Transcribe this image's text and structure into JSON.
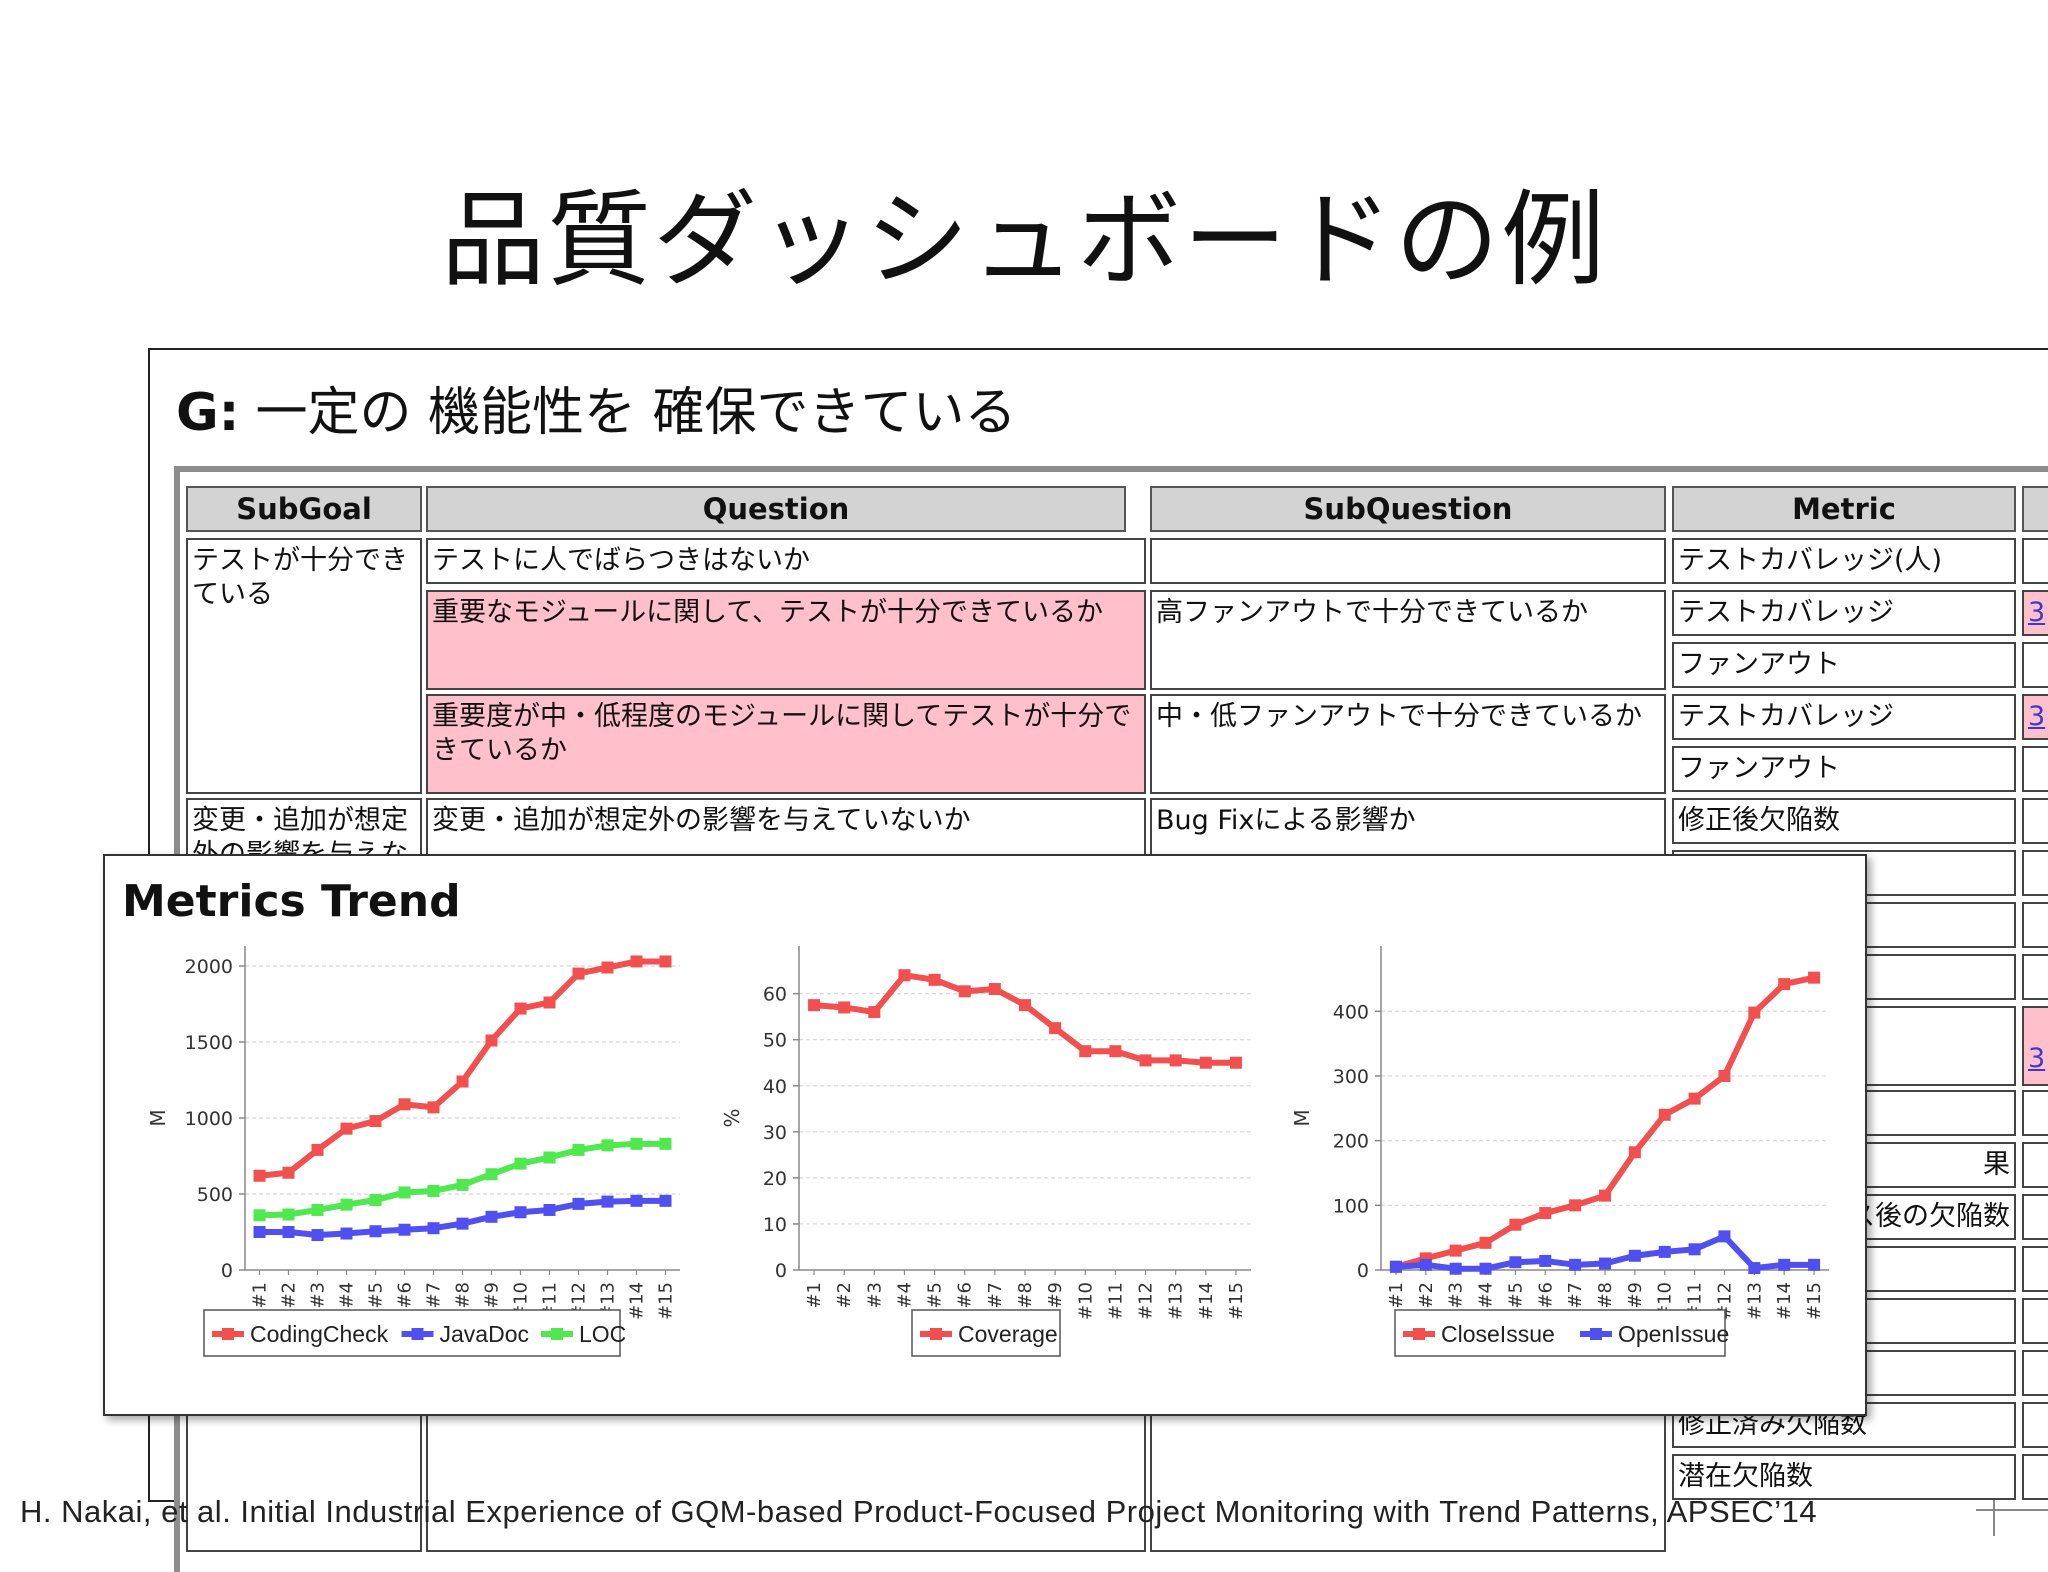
{
  "slide": {
    "title": "品質ダッシュボードの例",
    "citation": "H. Nakai, et al. Initial Industrial Experience of GQM-based Product-Focused Project Monitoring with Trend Patterns, APSEC’14"
  },
  "goal": {
    "prefix": "G:",
    "text": "一定の 機能性を 確保できている"
  },
  "table": {
    "headers": [
      "SubGoal",
      "Question",
      "SubQuestion",
      "Metric"
    ],
    "subgoals": [
      "テストが十分できている",
      "変更・追加が想定外の影響を与えないか"
    ],
    "questions": [
      "テストに人でばらつきはないか",
      "重要なモジュールに関して、テストが十分できているか",
      "重要度が中・低程度のモジュールに関してテストが十分できているか",
      "変更・追加が想定外の影響を与えていないか"
    ],
    "subquestions": [
      "",
      "高ファンアウトで十分できているか",
      "中・低ファンアウトで十分できているか",
      "Bug Fixによる影響か"
    ],
    "metrics": [
      "テストカバレッジ(人)",
      "テストカバレッジ",
      "ファンアウト",
      "テストカバレッジ",
      "ファンアウト",
      "修正後欠陥数",
      "修正済み欠陥数",
      "潜在欠陥数"
    ],
    "partial_metrics": [
      "果",
      "ス後の欠陥数"
    ],
    "link_values": [
      "3",
      "3",
      "3"
    ]
  },
  "metrics_trend": {
    "title": "Metrics Trend"
  },
  "chart_data": [
    {
      "type": "line",
      "x": [
        "#1",
        "#2",
        "#3",
        "#4",
        "#5",
        "#6",
        "#7",
        "#8",
        "#9",
        "#10",
        "#11",
        "#12",
        "#13",
        "#14",
        "#15"
      ],
      "ylabel": "M",
      "ylim": [
        0,
        2000
      ],
      "yticks": [
        0,
        500,
        1000,
        1500,
        2000
      ],
      "grid": true,
      "legend": "bottom",
      "series": [
        {
          "name": "CodingCheck",
          "color": "#f24f4f",
          "values": [
            620,
            640,
            790,
            930,
            980,
            1090,
            1070,
            1240,
            1510,
            1720,
            1760,
            1950,
            1990,
            2030,
            2030
          ]
        },
        {
          "name": "JavaDoc",
          "color": "#5050f0",
          "values": [
            250,
            250,
            230,
            240,
            255,
            265,
            275,
            305,
            350,
            380,
            395,
            435,
            450,
            455,
            455
          ]
        },
        {
          "name": "LOC",
          "color": "#4fe84f",
          "values": [
            360,
            365,
            395,
            430,
            460,
            510,
            520,
            560,
            630,
            700,
            740,
            790,
            820,
            830,
            830
          ]
        }
      ]
    },
    {
      "type": "line",
      "x": [
        "#1",
        "#2",
        "#3",
        "#4",
        "#5",
        "#6",
        "#7",
        "#8",
        "#9",
        "#10",
        "#11",
        "#12",
        "#13",
        "#14",
        "#15"
      ],
      "ylabel": "%",
      "ylim": [
        0,
        66
      ],
      "yticks": [
        0,
        10,
        20,
        30,
        40,
        50,
        60
      ],
      "grid": true,
      "legend": "bottom",
      "series": [
        {
          "name": "Coverage",
          "color": "#f24f4f",
          "values": [
            57.5,
            57,
            56,
            64,
            63,
            60.5,
            61,
            57.5,
            52.5,
            47.5,
            47.5,
            45.5,
            45.5,
            45,
            45
          ]
        }
      ]
    },
    {
      "type": "line",
      "x": [
        "#1",
        "#2",
        "#3",
        "#4",
        "#5",
        "#6",
        "#7",
        "#8",
        "#9",
        "#10",
        "#11",
        "#12",
        "#13",
        "#14",
        "#15"
      ],
      "ylabel": "M",
      "ylim": [
        0,
        470
      ],
      "yticks": [
        0,
        100,
        200,
        300,
        400
      ],
      "grid": true,
      "legend": "bottom",
      "series": [
        {
          "name": "CloseIssue",
          "color": "#f24f4f",
          "values": [
            5,
            18,
            30,
            42,
            70,
            88,
            100,
            115,
            182,
            240,
            265,
            300,
            398,
            442,
            452
          ]
        },
        {
          "name": "OpenIssue",
          "color": "#5050f0",
          "values": [
            5,
            8,
            2,
            2,
            12,
            14,
            8,
            10,
            22,
            28,
            32,
            52,
            3,
            8,
            8
          ]
        }
      ]
    }
  ]
}
